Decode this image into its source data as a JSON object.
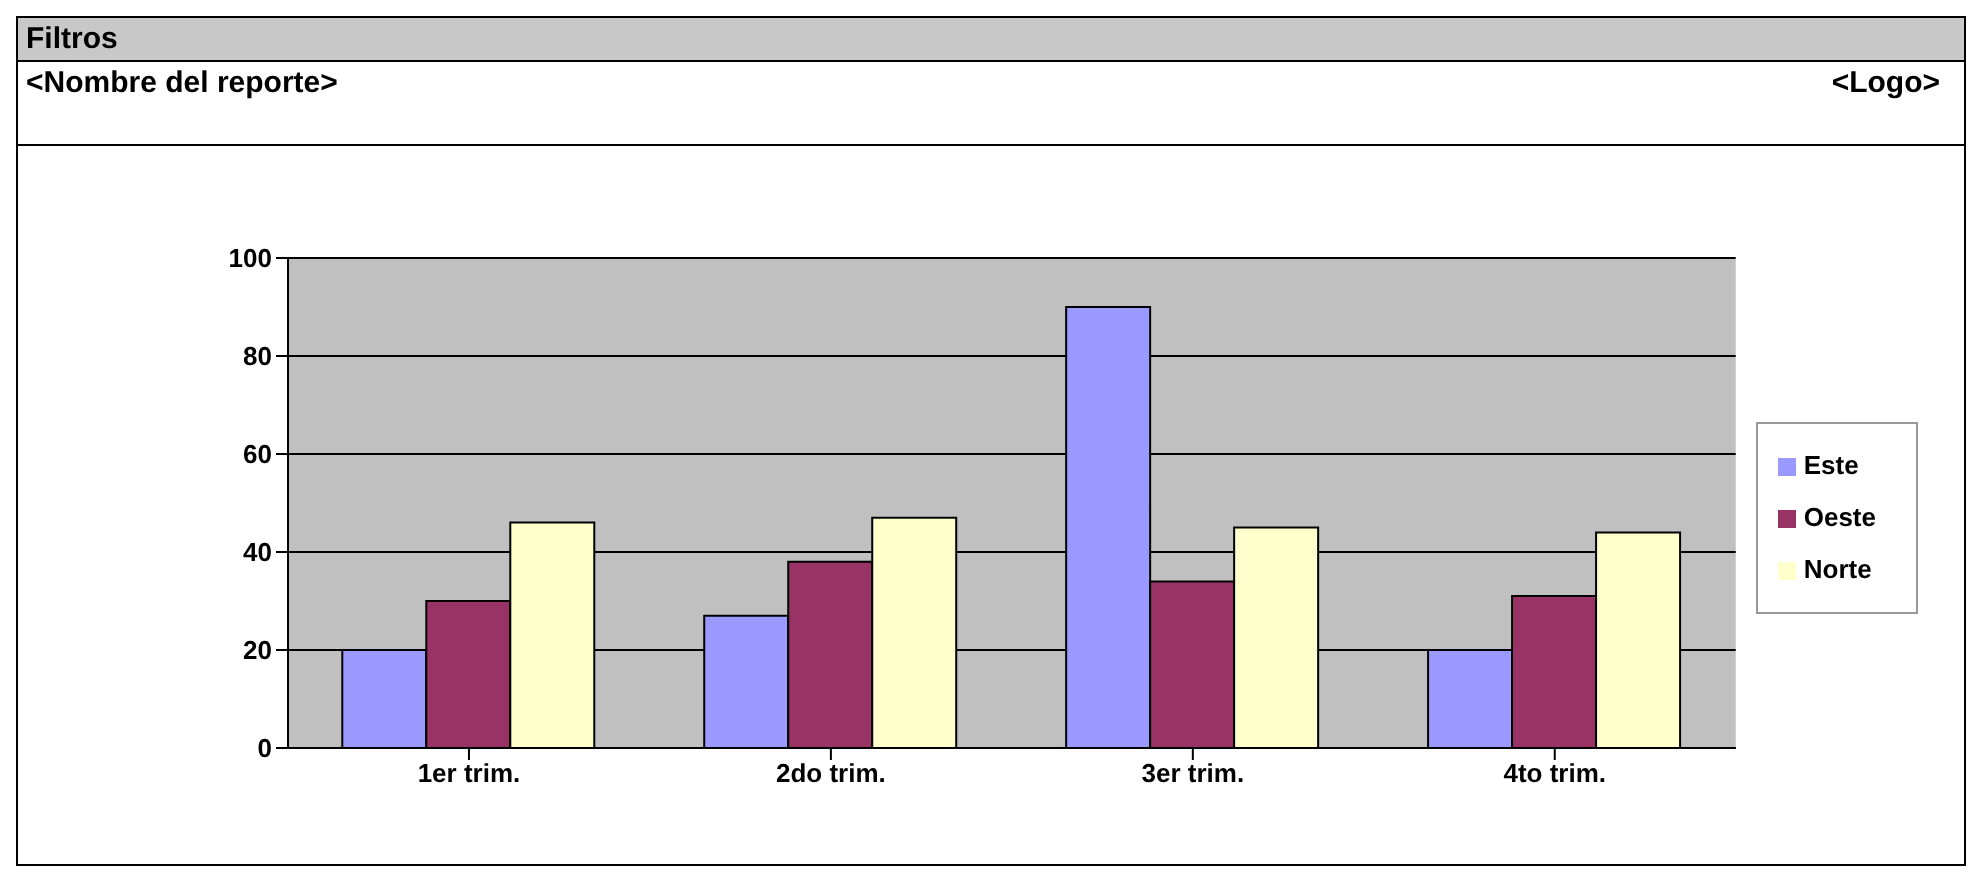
{
  "chart_data": {
    "type": "bar",
    "title": "Filtros",
    "subtitle": "<Nombre del reporte>",
    "annotations": [
      "<Logo>"
    ],
    "categories": [
      "1er trim.",
      "2do trim.",
      "3er trim.",
      "4to trim."
    ],
    "series": [
      {
        "name": "Este",
        "color": "#9999ff",
        "values": [
          20,
          27,
          90,
          20
        ]
      },
      {
        "name": "Oeste",
        "color": "#993366",
        "values": [
          30,
          38,
          34,
          31
        ]
      },
      {
        "name": "Norte",
        "color": "#ffffcc",
        "values": [
          46,
          47,
          45,
          44
        ]
      }
    ],
    "ylim": [
      0,
      100
    ],
    "yticks": [
      0,
      20,
      40,
      60,
      80,
      100
    ],
    "grid": "y",
    "legend": "right"
  }
}
